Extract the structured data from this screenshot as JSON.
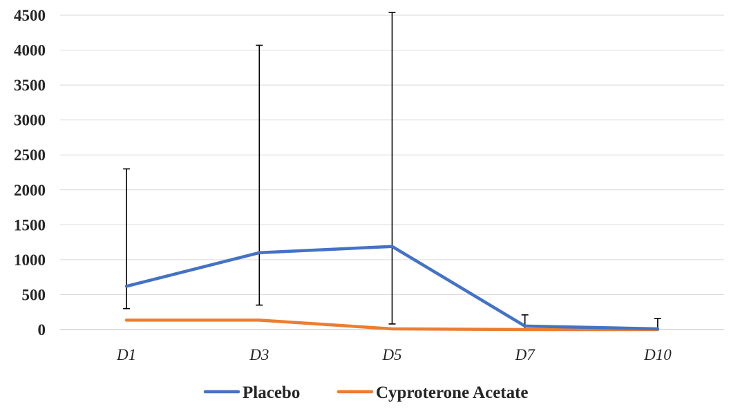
{
  "chart_data": {
    "type": "line",
    "title": "",
    "xlabel": "",
    "ylabel": "",
    "categories": [
      "D1",
      "D3",
      "D5",
      "D7",
      "D10"
    ],
    "ylim": [
      0,
      4500
    ],
    "yticks": [
      0,
      500,
      1000,
      1500,
      2000,
      2500,
      3000,
      3500,
      4000,
      4500
    ],
    "grid": true,
    "legend_position": "bottom",
    "series": [
      {
        "name": "Placebo",
        "color": "#4472c4",
        "values": [
          620,
          1100,
          1190,
          50,
          10
        ],
        "error_upper": [
          2300,
          4070,
          4540,
          210,
          160
        ],
        "error_lower": [
          300,
          350,
          80,
          0,
          0
        ],
        "error_direction": "both"
      },
      {
        "name": "Cyproterone Acetate",
        "color": "#ed7d31",
        "values": [
          135,
          135,
          10,
          0,
          0
        ]
      }
    ]
  }
}
